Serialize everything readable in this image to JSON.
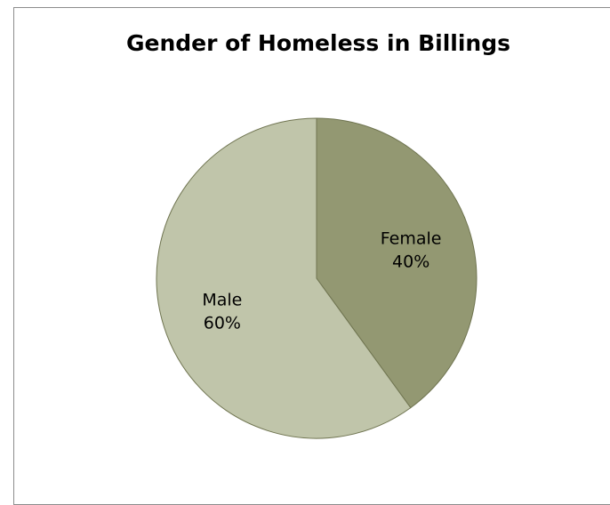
{
  "chart_data": {
    "type": "pie",
    "title": "Gender of Homeless in Billings",
    "slices": [
      {
        "label": "Female",
        "value": 40,
        "value_label": "40%",
        "color": "#939872"
      },
      {
        "label": "Male",
        "value": 60,
        "value_label": "60%",
        "color": "#c0c5aa"
      }
    ],
    "start_angle": "12 o'clock",
    "direction": "clockwise",
    "legend": "none",
    "edge_color": "#6f7450"
  }
}
